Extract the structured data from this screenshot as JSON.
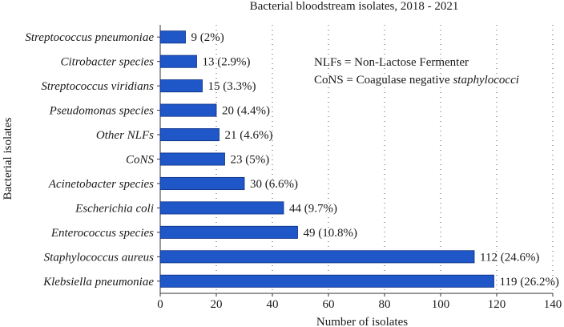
{
  "chart_data": {
    "type": "bar",
    "orientation": "horizontal",
    "title": "Bacterial bloodstream isolates, 2018 - 2021",
    "xlabel": "Number of isolates",
    "ylabel": "Bacterial isolates",
    "xlim": [
      0,
      140
    ],
    "xticks": [
      0,
      20,
      40,
      60,
      80,
      100,
      120,
      140
    ],
    "grid": "vertical dotted",
    "bar_color": "#1f57c8",
    "categories": [
      "Streptococcus pneumoniae",
      "Citrobacter species",
      "Streptococcus viridians",
      "Pseudomonas species",
      "Other NLFs",
      "CoNS",
      "Acinetobacter species",
      "Escherichia coli",
      "Enterococcus species",
      "Staphylococcus aureus",
      "Klebsiella pneumoniae"
    ],
    "values": [
      9,
      13,
      15,
      20,
      21,
      23,
      30,
      44,
      49,
      112,
      119
    ],
    "data_labels": [
      "9 (2%)",
      "13 (2.9%)",
      "15 (3.3%)",
      "20 (4.4%)",
      "21 (4.6%)",
      "23 (5%)",
      "30 (6.6%)",
      "44 (9.7%)",
      "49 (10.8%)",
      "112 (24.6%)",
      "119 (26.2%)"
    ],
    "annotations": [
      "NLFs = Non-Lactose Fermenter",
      "CoNS = Coagulase negative staphylococci"
    ]
  }
}
